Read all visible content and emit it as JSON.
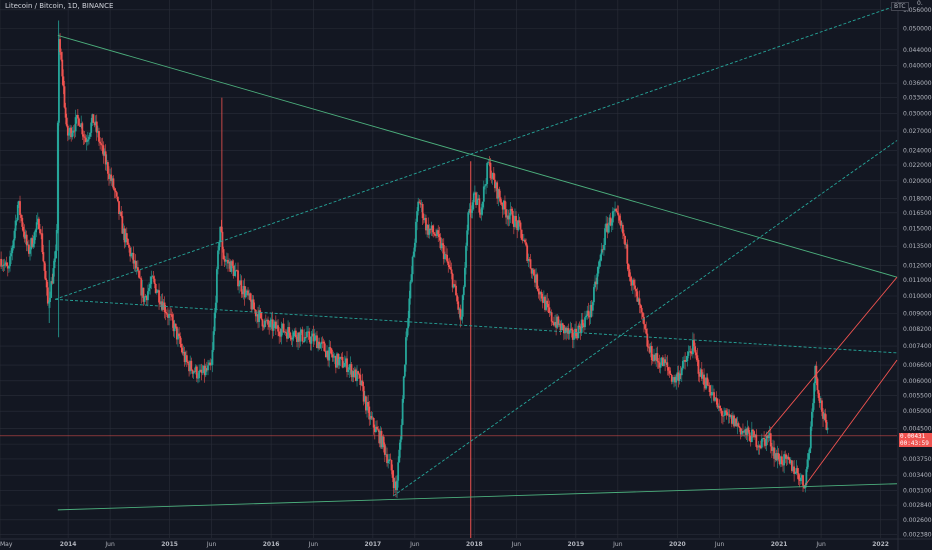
{
  "header": {
    "title": "Litecoin / Bitcoin, 1D, BINANCE",
    "currency": "BTC",
    "truncated_top": "0."
  },
  "last_price": {
    "line1": "0.00431",
    "line2": "00:43:59"
  },
  "colors": {
    "background": "#131722",
    "grid": "#2a2e39",
    "up": "#26a69a",
    "down": "#ef5350",
    "trendline_green": "#4caf7d",
    "trendline_teal": "#26a69a",
    "trendline_red": "#f05350",
    "axis_text": "#b2b5be"
  },
  "chart_data": {
    "type": "candlestick",
    "title": "Litecoin / Bitcoin, 1D, BINANCE",
    "y_scale": "log",
    "ylim": [
      0.00233,
      0.0594
    ],
    "y_ticks": [
      "0.056000",
      "0.050000",
      "0.044000",
      "0.040000",
      "0.036000",
      "0.033000",
      "0.030000",
      "0.027000",
      "0.024000",
      "0.022000",
      "0.020000",
      "0.018000",
      "0.016500",
      "0.015000",
      "0.013500",
      "0.012000",
      "0.011000",
      "0.010000",
      "0.009000",
      "0.008200",
      "0.007400",
      "0.006600",
      "0.006000",
      "0.005500",
      "0.005000",
      "0.004500",
      "0.004100",
      "0.003750",
      "0.003400",
      "0.003100",
      "0.002840",
      "0.002600",
      "0.002380"
    ],
    "x_ticks": [
      "May",
      "2014",
      "Jun",
      "2015",
      "Jun",
      "2016",
      "Jun",
      "2017",
      "Jun",
      "2018",
      "Jun",
      "2019",
      "Jun",
      "2020",
      "Jun",
      "2021",
      "Jun",
      "2022"
    ],
    "x_range": [
      "2013-05-01",
      "2022-03-01"
    ],
    "price_path": [
      [
        "2013-05-05",
        0.0125
      ],
      [
        "2013-06-01",
        0.0115
      ],
      [
        "2013-07-05",
        0.0175
      ],
      [
        "2013-08-10",
        0.013
      ],
      [
        "2013-09-20",
        0.0158
      ],
      [
        "2013-10-20",
        0.0095
      ],
      [
        "2013-11-20",
        0.013
      ],
      [
        "2013-11-28",
        0.046
      ],
      [
        "2013-12-10",
        0.039
      ],
      [
        "2013-12-28",
        0.0262
      ],
      [
        "2014-02-10",
        0.0292
      ],
      [
        "2014-03-05",
        0.0255
      ],
      [
        "2014-04-01",
        0.029
      ],
      [
        "2014-05-05",
        0.0238
      ],
      [
        "2014-06-15",
        0.019
      ],
      [
        "2014-07-20",
        0.0145
      ],
      [
        "2014-09-01",
        0.0118
      ],
      [
        "2014-10-01",
        0.0098
      ],
      [
        "2014-11-01",
        0.011
      ],
      [
        "2014-12-01",
        0.0098
      ],
      [
        "2015-01-20",
        0.0082
      ],
      [
        "2015-03-01",
        0.0067
      ],
      [
        "2015-04-20",
        0.0062
      ],
      [
        "2015-06-01",
        0.0065
      ],
      [
        "2015-07-01",
        0.0155
      ],
      [
        "2015-07-15",
        0.0125
      ],
      [
        "2015-08-10",
        0.012
      ],
      [
        "2015-09-20",
        0.0105
      ],
      [
        "2015-11-01",
        0.0092
      ],
      [
        "2015-12-15",
        0.0084
      ],
      [
        "2016-02-01",
        0.0082
      ],
      [
        "2016-03-20",
        0.008
      ],
      [
        "2016-05-01",
        0.0078
      ],
      [
        "2016-06-10",
        0.0077
      ],
      [
        "2016-07-15",
        0.0072
      ],
      [
        "2016-08-20",
        0.0068
      ],
      [
        "2016-10-01",
        0.0066
      ],
      [
        "2016-11-15",
        0.006
      ],
      [
        "2016-12-20",
        0.0048
      ],
      [
        "2017-02-01",
        0.0042
      ],
      [
        "2017-03-05",
        0.0036
      ],
      [
        "2017-03-25",
        0.0031
      ],
      [
        "2017-04-10",
        0.0042
      ],
      [
        "2017-05-01",
        0.008
      ],
      [
        "2017-05-25",
        0.0125
      ],
      [
        "2017-06-15",
        0.018
      ],
      [
        "2017-07-15",
        0.015
      ],
      [
        "2017-08-15",
        0.0145
      ],
      [
        "2017-09-10",
        0.0132
      ],
      [
        "2017-10-15",
        0.011
      ],
      [
        "2017-11-15",
        0.0085
      ],
      [
        "2017-12-10",
        0.016
      ],
      [
        "2018-01-01",
        0.018
      ],
      [
        "2018-01-25",
        0.017
      ],
      [
        "2018-02-20",
        0.0222
      ],
      [
        "2018-03-15",
        0.0195
      ],
      [
        "2018-04-20",
        0.0168
      ],
      [
        "2018-05-20",
        0.016
      ],
      [
        "2018-06-15",
        0.0148
      ],
      [
        "2018-07-20",
        0.0122
      ],
      [
        "2018-08-20",
        0.0105
      ],
      [
        "2018-10-01",
        0.0088
      ],
      [
        "2018-11-15",
        0.0082
      ],
      [
        "2018-12-20",
        0.0078
      ],
      [
        "2019-01-25",
        0.0085
      ],
      [
        "2019-02-25",
        0.0092
      ],
      [
        "2019-03-25",
        0.012
      ],
      [
        "2019-04-20",
        0.015
      ],
      [
        "2019-05-20",
        0.0165
      ],
      [
        "2019-06-20",
        0.0145
      ],
      [
        "2019-07-20",
        0.011
      ],
      [
        "2019-08-20",
        0.0092
      ],
      [
        "2019-09-20",
        0.0072
      ],
      [
        "2019-10-20",
        0.0068
      ],
      [
        "2019-11-20",
        0.0066
      ],
      [
        "2019-12-20",
        0.006
      ],
      [
        "2020-01-25",
        0.0066
      ],
      [
        "2020-02-25",
        0.0074
      ],
      [
        "2020-03-25",
        0.0062
      ],
      [
        "2020-04-25",
        0.0058
      ],
      [
        "2020-05-25",
        0.0051
      ],
      [
        "2020-06-25",
        0.0048
      ],
      [
        "2020-07-25",
        0.0047
      ],
      [
        "2020-08-25",
        0.0044
      ],
      [
        "2020-09-25",
        0.0043
      ],
      [
        "2020-10-25",
        0.0041
      ],
      [
        "2020-11-25",
        0.0043
      ],
      [
        "2020-12-20",
        0.0038
      ],
      [
        "2021-01-20",
        0.0037
      ],
      [
        "2021-02-15",
        0.0036
      ],
      [
        "2021-03-15",
        0.0034
      ],
      [
        "2021-04-01",
        0.0032
      ],
      [
        "2021-04-20",
        0.004
      ],
      [
        "2021-05-10",
        0.0065
      ],
      [
        "2021-05-25",
        0.0055
      ],
      [
        "2021-06-10",
        0.0048
      ],
      [
        "2021-06-25",
        0.0043
      ]
    ],
    "vertical_lines": [
      {
        "date": "2017-12-19",
        "color": "red"
      }
    ],
    "horizontal_lines": [
      {
        "price": 0.00431,
        "color": "red"
      }
    ],
    "trendlines": [
      {
        "from": [
          "2013-11-25",
          0.048
        ],
        "to": [
          "2022-03-01",
          0.0112
        ],
        "style": "solid",
        "color": "green"
      },
      {
        "from": [
          "2013-11-25",
          0.00276
        ],
        "to": [
          "2022-03-01",
          0.00323
        ],
        "style": "solid",
        "color": "green"
      },
      {
        "from": [
          "2013-11-15",
          0.0098
        ],
        "to": [
          "2022-03-01",
          0.0071
        ],
        "style": "dashed",
        "color": "teal"
      },
      {
        "from": [
          "2013-11-15",
          0.0098
        ],
        "to": [
          "2022-03-01",
          0.0575
        ],
        "style": "dashed",
        "color": "teal"
      },
      {
        "from": [
          "2017-03-15",
          0.003
        ],
        "to": [
          "2022-03-01",
          0.0255
        ],
        "style": "dashed",
        "color": "teal"
      },
      {
        "from": [
          "2020-11-10",
          0.0043
        ],
        "to": [
          "2022-03-01",
          0.0112
        ],
        "style": "solid",
        "color": "red"
      },
      {
        "from": [
          "2021-04-05",
          0.0032
        ],
        "to": [
          "2022-03-01",
          0.0068
        ],
        "style": "solid",
        "color": "red"
      }
    ]
  }
}
